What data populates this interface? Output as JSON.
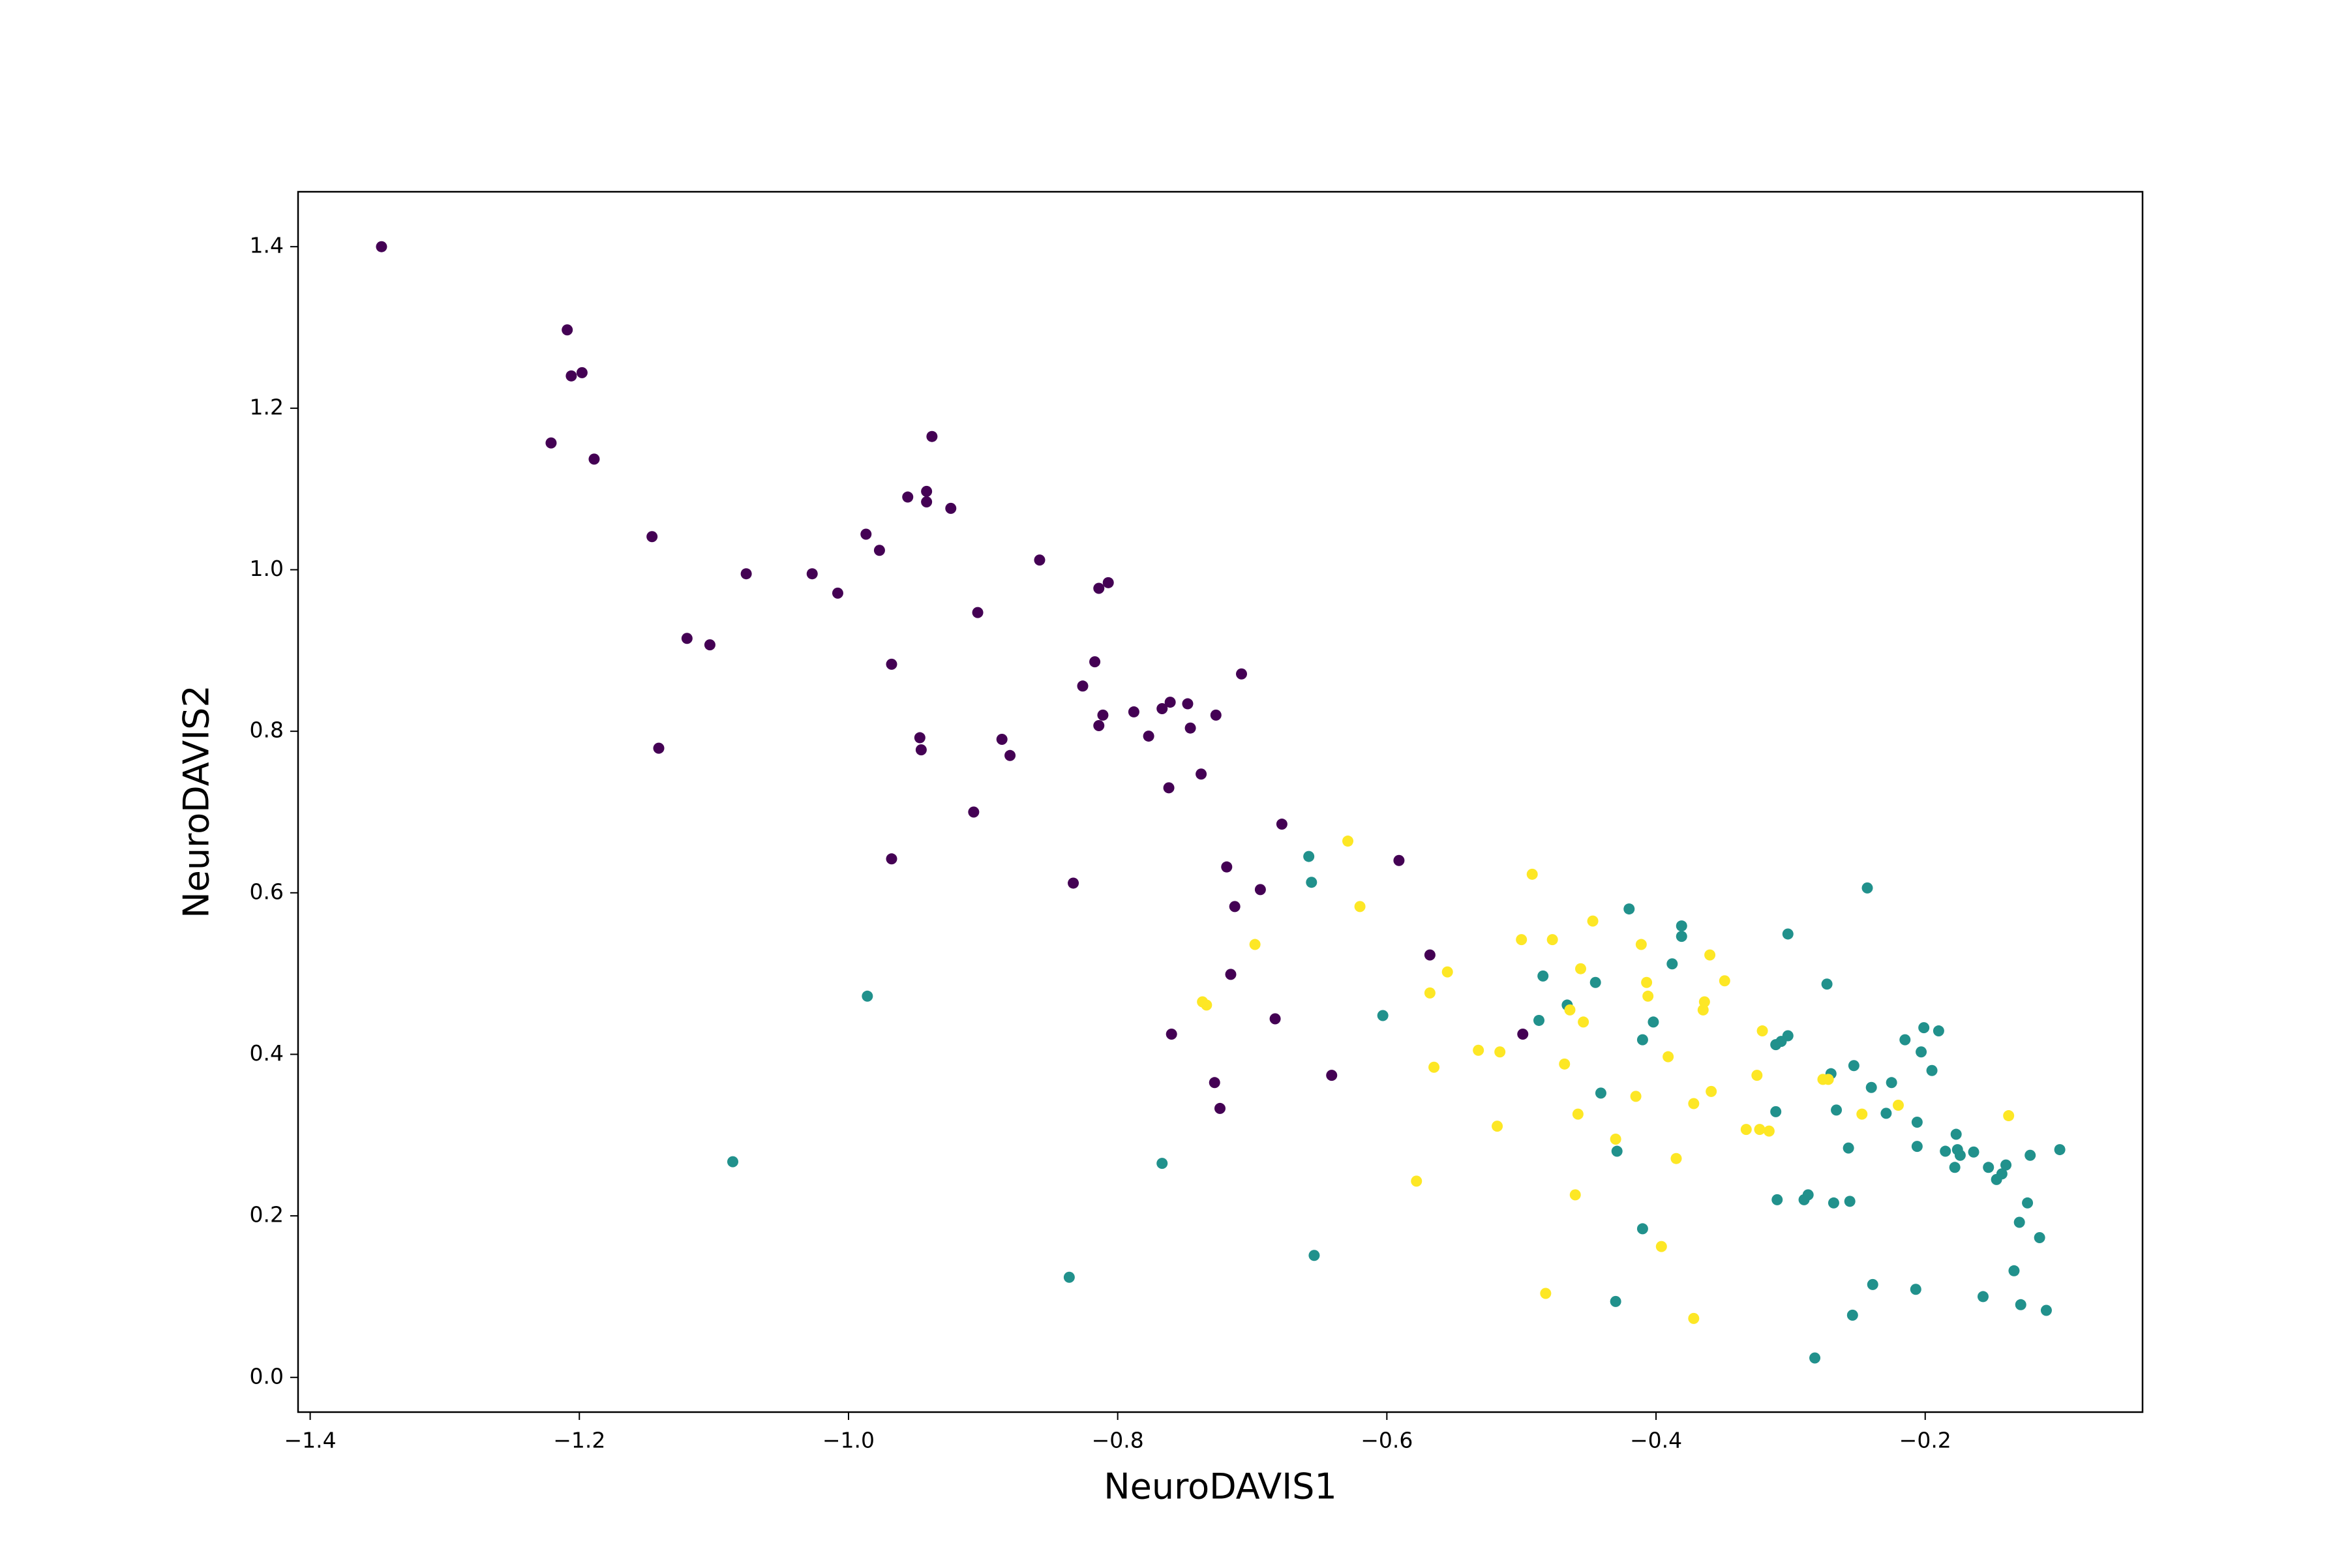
{
  "chart_data": {
    "type": "scatter",
    "x_label": "NeuroDAVIS1",
    "y_label": "NeuroDAVIS2",
    "xlim": [
      -1.409,
      -0.0385
    ],
    "ylim": [
      -0.043,
      1.468
    ],
    "xticks": [
      {
        "value": -1.4,
        "label": "−1.4"
      },
      {
        "value": -1.2,
        "label": "−1.2"
      },
      {
        "value": -1.0,
        "label": "−1.0"
      },
      {
        "value": -0.8,
        "label": "−0.8"
      },
      {
        "value": -0.6,
        "label": "−0.6"
      },
      {
        "value": -0.4,
        "label": "−0.4"
      },
      {
        "value": -0.2,
        "label": "−0.2"
      }
    ],
    "yticks": [
      {
        "value": 0,
        "label": "0.0"
      },
      0.2,
      0.4,
      0.6,
      0.8,
      {
        "value": 1,
        "label": "1.0"
      },
      1.2,
      1.4
    ],
    "grid": false,
    "series": [
      {
        "color": "#440154",
        "x": [
          -1.347,
          -1.209,
          -1.206,
          -1.198,
          -1.221,
          -1.189,
          -1.146,
          -1.076,
          -1.12,
          -1.103,
          -1.141,
          -1.027,
          -1.008,
          -0.987,
          -0.977,
          -0.956,
          -0.942,
          -0.942,
          -0.938,
          -0.924,
          -0.904,
          -0.968,
          -0.947,
          -0.946,
          -0.907,
          -0.968,
          -0.886,
          -0.88,
          -0.858,
          -0.814,
          -0.807,
          -0.817,
          -0.826,
          -0.811,
          -0.814,
          -0.788,
          -0.777,
          -0.767,
          -0.761,
          -0.748,
          -0.746,
          -0.727,
          -0.708,
          -0.762,
          -0.738,
          -0.833,
          -0.719,
          -0.713,
          -0.694,
          -0.678,
          -0.591,
          -0.568,
          -0.716,
          -0.683,
          -0.76,
          -0.728,
          -0.724,
          -0.641,
          -0.499
        ],
        "values": [
          1.4,
          1.297,
          1.24,
          1.244,
          1.157,
          1.137,
          1.041,
          0.995,
          0.915,
          0.907,
          0.779,
          0.995,
          0.971,
          1.044,
          1.024,
          1.09,
          1.097,
          1.084,
          1.165,
          1.076,
          0.947,
          0.883,
          0.792,
          0.777,
          0.7,
          0.642,
          0.79,
          0.77,
          1.012,
          0.977,
          0.984,
          0.886,
          0.856,
          0.82,
          0.807,
          0.824,
          0.794,
          0.828,
          0.836,
          0.834,
          0.804,
          0.82,
          0.871,
          0.73,
          0.747,
          0.612,
          0.632,
          0.583,
          0.604,
          0.685,
          0.64,
          0.523,
          0.499,
          0.444,
          0.425,
          0.365,
          0.333,
          0.374,
          0.425
        ]
      },
      {
        "color": "#21918c",
        "x": [
          -0.986,
          -1.086,
          -0.836,
          -0.767,
          -0.658,
          -0.656,
          -0.603,
          -0.654,
          -0.484,
          -0.487,
          -0.466,
          -0.445,
          -0.441,
          -0.429,
          -0.42,
          -0.381,
          -0.381,
          -0.388,
          -0.402,
          -0.41,
          -0.41,
          -0.43,
          -0.302,
          -0.302,
          -0.311,
          -0.307,
          -0.311,
          -0.31,
          -0.29,
          -0.287,
          -0.282,
          -0.273,
          -0.27,
          -0.266,
          -0.268,
          -0.257,
          -0.256,
          -0.254,
          -0.253,
          -0.243,
          -0.24,
          -0.239,
          -0.229,
          -0.225,
          -0.215,
          -0.206,
          -0.206,
          -0.207,
          -0.203,
          -0.201,
          -0.195,
          -0.19,
          -0.185,
          -0.177,
          -0.178,
          -0.176,
          -0.174,
          -0.164,
          -0.157,
          -0.153,
          -0.147,
          -0.143,
          -0.14,
          -0.134,
          -0.13,
          -0.129,
          -0.124,
          -0.122,
          -0.115,
          -0.11,
          -0.1
        ],
        "values": [
          0.472,
          0.267,
          0.124,
          0.265,
          0.645,
          0.613,
          0.448,
          0.151,
          0.497,
          0.442,
          0.461,
          0.489,
          0.352,
          0.28,
          0.58,
          0.559,
          0.546,
          0.512,
          0.44,
          0.418,
          0.184,
          0.094,
          0.549,
          0.423,
          0.412,
          0.416,
          0.329,
          0.22,
          0.22,
          0.226,
          0.024,
          0.487,
          0.376,
          0.331,
          0.216,
          0.284,
          0.218,
          0.077,
          0.386,
          0.606,
          0.359,
          0.115,
          0.327,
          0.365,
          0.418,
          0.316,
          0.286,
          0.109,
          0.403,
          0.433,
          0.38,
          0.429,
          0.28,
          0.301,
          0.26,
          0.282,
          0.275,
          0.279,
          0.1,
          0.26,
          0.245,
          0.252,
          0.263,
          0.132,
          0.192,
          0.09,
          0.216,
          0.275,
          0.173,
          0.083,
          0.282
        ]
      },
      {
        "color": "#fde725",
        "x": [
          -0.629,
          -0.62,
          -0.698,
          -0.737,
          -0.734,
          -0.555,
          -0.568,
          -0.565,
          -0.578,
          -0.532,
          -0.516,
          -0.518,
          -0.492,
          -0.5,
          -0.477,
          -0.447,
          -0.456,
          -0.464,
          -0.454,
          -0.468,
          -0.458,
          -0.46,
          -0.482,
          -0.43,
          -0.415,
          -0.411,
          -0.407,
          -0.406,
          -0.391,
          -0.396,
          -0.385,
          -0.372,
          -0.372,
          -0.365,
          -0.364,
          -0.36,
          -0.359,
          -0.349,
          -0.333,
          -0.325,
          -0.323,
          -0.316,
          -0.321,
          -0.276,
          -0.272,
          -0.247,
          -0.22,
          -0.138
        ],
        "values": [
          0.664,
          0.583,
          0.536,
          0.465,
          0.461,
          0.502,
          0.476,
          0.384,
          0.243,
          0.405,
          0.403,
          0.311,
          0.623,
          0.542,
          0.542,
          0.565,
          0.506,
          0.455,
          0.44,
          0.388,
          0.326,
          0.226,
          0.104,
          0.295,
          0.348,
          0.536,
          0.489,
          0.472,
          0.397,
          0.162,
          0.271,
          0.073,
          0.339,
          0.455,
          0.465,
          0.523,
          0.354,
          0.491,
          0.307,
          0.374,
          0.307,
          0.305,
          0.429,
          0.369,
          0.369,
          0.326,
          0.337,
          0.324
        ]
      }
    ]
  }
}
